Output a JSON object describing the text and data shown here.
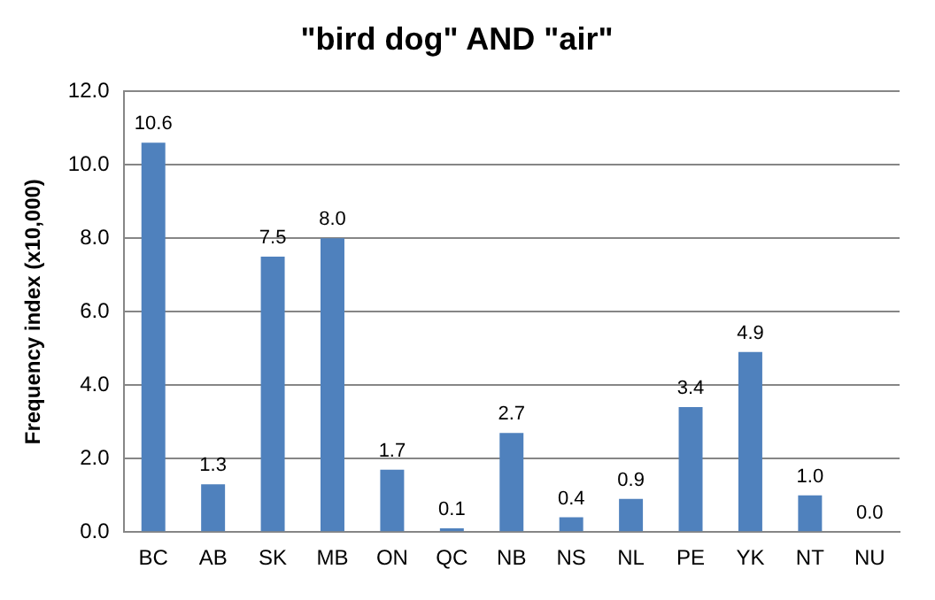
{
  "chart_data": {
    "type": "bar",
    "title": "\"bird dog\" AND \"air\"",
    "ylabel": "Frequency index (x10,000)",
    "categories": [
      "BC",
      "AB",
      "SK",
      "MB",
      "ON",
      "QC",
      "NB",
      "NS",
      "NL",
      "PE",
      "YK",
      "NT",
      "NU"
    ],
    "values": [
      10.6,
      1.3,
      7.5,
      8.0,
      1.7,
      0.1,
      2.7,
      0.4,
      0.9,
      3.4,
      4.9,
      1.0,
      0.0
    ],
    "value_labels": [
      "10.6",
      "1.3",
      "7.5",
      "8.0",
      "1.7",
      "0.1",
      "2.7",
      "0.4",
      "0.9",
      "3.4",
      "4.9",
      "1.0",
      "0.0"
    ],
    "color": "#4f81bd",
    "ylim": [
      0,
      12
    ],
    "yticks": [
      {
        "value": 0,
        "label": "0.0"
      },
      {
        "value": 2,
        "label": "2.0"
      },
      {
        "value": 4,
        "label": "4.0"
      },
      {
        "value": 6,
        "label": "6.0"
      },
      {
        "value": 8,
        "label": "8.0"
      },
      {
        "value": 10,
        "label": "10.0"
      },
      {
        "value": 12,
        "label": "12.0"
      }
    ],
    "grid": "y",
    "legend": false
  }
}
